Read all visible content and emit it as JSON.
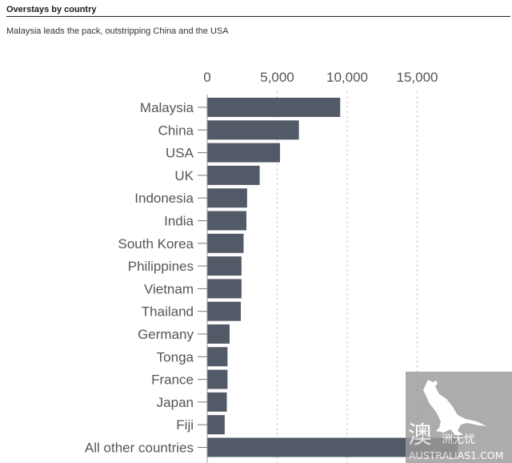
{
  "header": {
    "title": "Overstays by country",
    "subtitle": "Malaysia leads the pack, outstripping China and the USA"
  },
  "watermark": {
    "brand": "AUSTRALIAS1.COM",
    "glyph": "澳",
    "cn_text": "洲无忧"
  },
  "chart_data": {
    "type": "bar",
    "orientation": "horizontal",
    "title": "Overstays by country",
    "subtitle": "Malaysia leads the pack, outstripping China and the USA",
    "xlim": [
      0,
      18000
    ],
    "ticks": [
      0,
      5000,
      10000,
      15000
    ],
    "tick_labels": [
      "0",
      "5,000",
      "10,000",
      "15,000"
    ],
    "grid": "vertical dashed",
    "bar_color": "#525a67",
    "categories": [
      "Malaysia",
      "China",
      "USA",
      "UK",
      "Indonesia",
      "India",
      "South Korea",
      "Philippines",
      "Vietnam",
      "Thailand",
      "Germany",
      "Tonga",
      "France",
      "Japan",
      "Fiji",
      "All other countries"
    ],
    "values": [
      9500,
      6550,
      5200,
      3750,
      2850,
      2800,
      2600,
      2450,
      2450,
      2400,
      1600,
      1450,
      1450,
      1400,
      1250,
      17900
    ]
  }
}
